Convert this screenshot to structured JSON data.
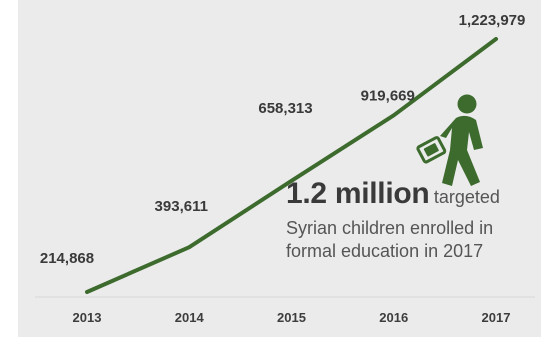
{
  "chart_data": {
    "type": "line",
    "title": "",
    "xlabel": "",
    "ylabel": "",
    "categories": [
      "2013",
      "2014",
      "2015",
      "2016",
      "2017"
    ],
    "series": [
      {
        "values": [
          214868,
          393611,
          658313,
          919669,
          1223979
        ],
        "labels": [
          "214,868",
          "393,611",
          "658,313",
          "919,669",
          "1,223,979"
        ]
      }
    ],
    "grid": false,
    "legend": "none"
  },
  "annotation": {
    "highlight": "1.2 million",
    "text_part1": "targeted",
    "text_line2": "Syrian children enrolled in",
    "text_line3": "formal education in 2017"
  },
  "icon": "student-walking-icon",
  "colors": {
    "background": "#ebebeb",
    "line": "#3d6b2e",
    "icon": "#3d6b2e",
    "text": "#3a3a3a"
  }
}
